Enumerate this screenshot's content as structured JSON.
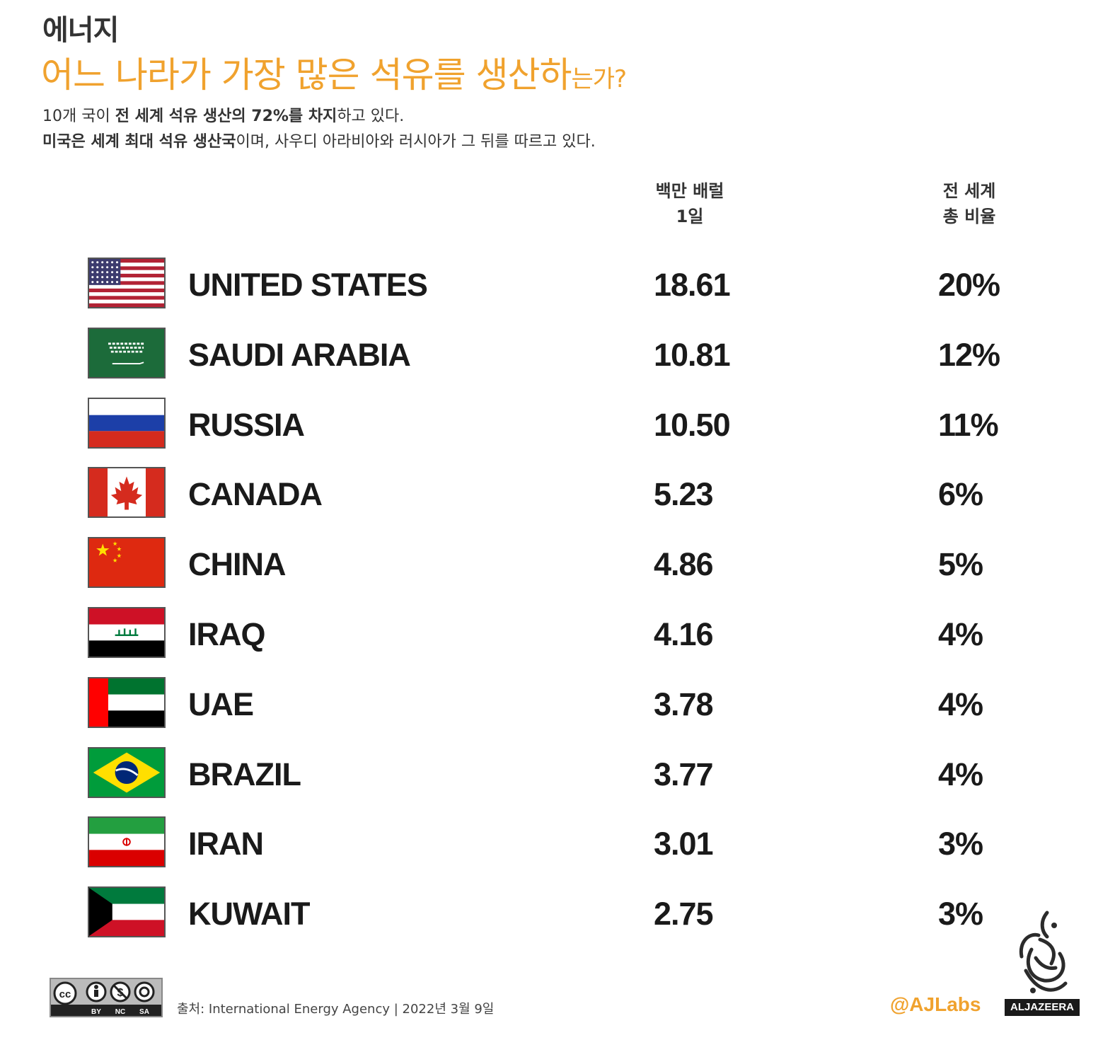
{
  "header": {
    "category": "에너지",
    "title_main": "어느 나라가 가장 많은 석유를 생산하",
    "title_small": "는가?",
    "sub1_bold1": "10개 국이 ",
    "sub1_bold2": "전 세계 석유 생산의 72%를 차지",
    "sub1_rest": "하고 있다.",
    "sub2_bold": "미국은 세계 최대 석유 생산국",
    "sub2_rest": "이며, 사우디 아라비아와 러시아가 그 뒤를 따르고 있다."
  },
  "columns": {
    "value_line1": "백만 배럴",
    "value_line2": "1일",
    "pct_line1": "전 세계",
    "pct_line2": "총 비율"
  },
  "chart_data": {
    "type": "table",
    "columns": [
      "country",
      "백만 배럴 1일",
      "전 세계 총 비율"
    ],
    "rows": [
      {
        "country": "UNITED STATES",
        "value": "18.61",
        "share": "20%",
        "flag": "us-flag-icon"
      },
      {
        "country": "SAUDI ARABIA",
        "value": "10.81",
        "share": "12%",
        "flag": "saudi-flag-icon"
      },
      {
        "country": "RUSSIA",
        "value": "10.50",
        "share": "11%",
        "flag": "russia-flag-icon"
      },
      {
        "country": "CANADA",
        "value": "5.23",
        "share": "6%",
        "flag": "canada-flag-icon"
      },
      {
        "country": "CHINA",
        "value": "4.86",
        "share": "5%",
        "flag": "china-flag-icon"
      },
      {
        "country": "IRAQ",
        "value": "4.16",
        "share": "4%",
        "flag": "iraq-flag-icon"
      },
      {
        "country": "UAE",
        "value": "3.78",
        "share": "4%",
        "flag": "uae-flag-icon"
      },
      {
        "country": "BRAZIL",
        "value": "3.77",
        "share": "4%",
        "flag": "brazil-flag-icon"
      },
      {
        "country": "IRAN",
        "value": "3.01",
        "share": "3%",
        "flag": "iran-flag-icon"
      },
      {
        "country": "KUWAIT",
        "value": "2.75",
        "share": "3%",
        "flag": "kuwait-flag-icon"
      }
    ]
  },
  "footer": {
    "license_labels": [
      "BY",
      "NC",
      "SA"
    ],
    "source": "출처: International Energy Agency  | 2022년 3월 9일",
    "handle": "@AJLabs",
    "brand": "ALJAZEERA"
  },
  "colors": {
    "accent": "#f0a22e",
    "text": "#1a1a1a"
  }
}
